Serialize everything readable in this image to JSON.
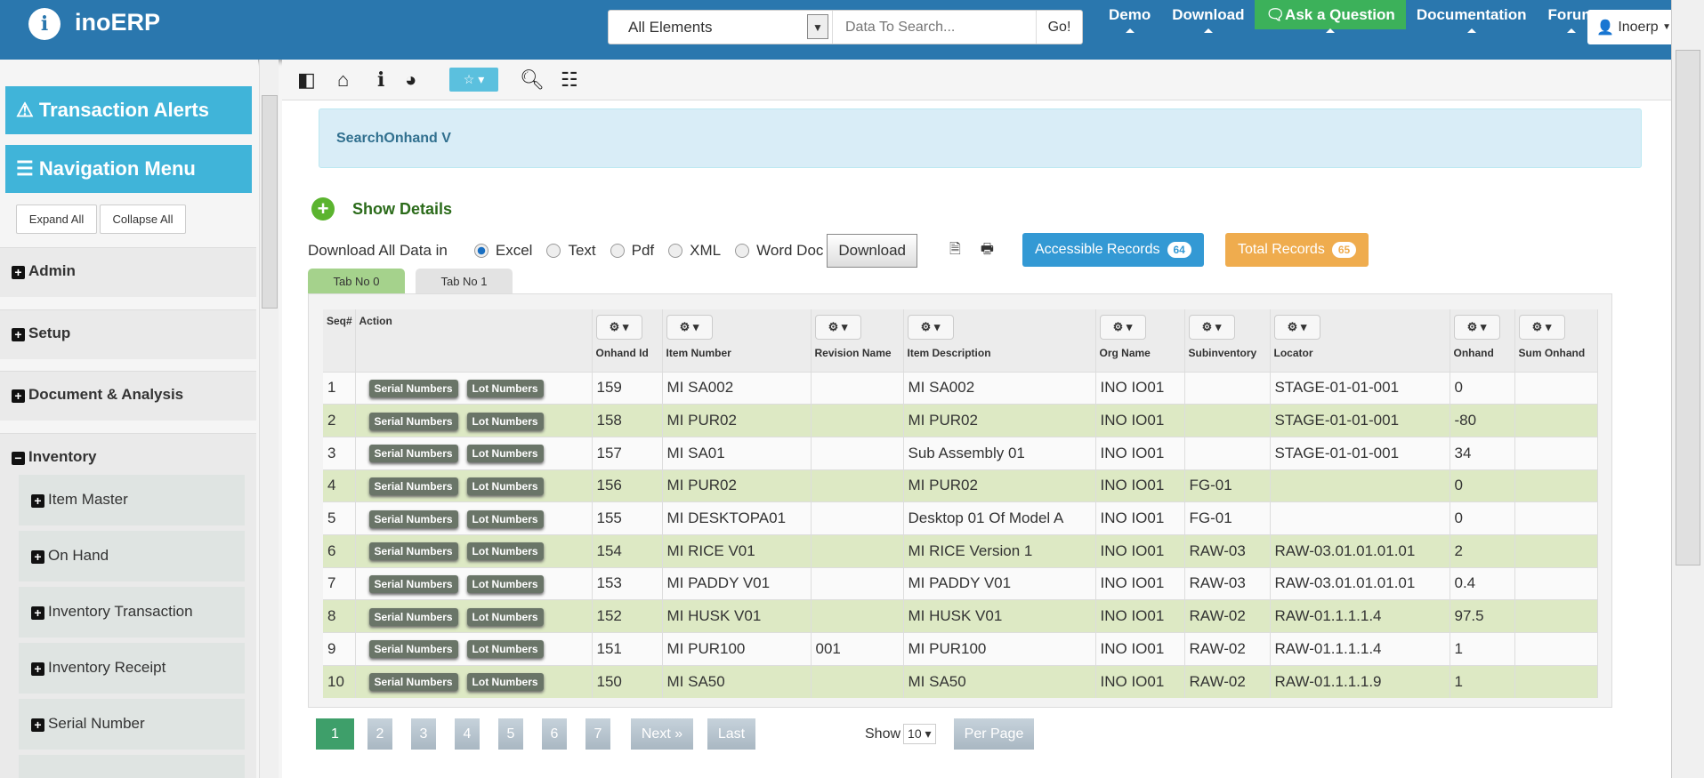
{
  "header": {
    "brand": "inoERP",
    "logo_letter": "i",
    "search_select": "All Elements",
    "search_placeholder": "Data To Search...",
    "go": "Go!",
    "nav": [
      "Demo",
      "Download",
      "Ask a Question",
      "Documentation",
      "Forum"
    ],
    "user": "Inoerp"
  },
  "sidebar": {
    "alerts": "Transaction Alerts",
    "menu": "Navigation Menu",
    "expand": "Expand All",
    "collapse": "Collapse All",
    "sections": [
      "Admin",
      "Setup",
      "Document & Analysis",
      "Inventory"
    ],
    "inventory_items": [
      "Item Master",
      "On Hand",
      "Inventory Transaction",
      "Inventory Receipt",
      "Serial Number"
    ]
  },
  "page": {
    "title": "SearchOnhand V",
    "show_details": "Show Details",
    "download_label": "Download All Data in",
    "formats": [
      "Excel",
      "Text",
      "Pdf",
      "XML",
      "Word Doc"
    ],
    "selected_format": "Excel",
    "download_btn": "Download",
    "accessible_label": "Accessible Records",
    "accessible_count": "64",
    "total_label": "Total Records",
    "total_count": "65",
    "tabs": [
      "Tab No 0",
      "Tab No 1"
    ],
    "active_tab": "Tab No 0"
  },
  "colors": {
    "header": "#2a77ae",
    "ask": "#3cb15a",
    "sidebar_btn": "#40b4d9",
    "accessible": "#3399d4",
    "total": "#efac4e",
    "row_alt": "#dde9c4"
  },
  "table": {
    "columns": [
      "Seq#",
      "Action",
      "Onhand Id",
      "Item Number",
      "Revision Name",
      "Item Description",
      "Org Name",
      "Subinventory",
      "Locator",
      "Onhand",
      "Sum Onhand"
    ],
    "action_buttons": [
      "Serial Numbers",
      "Lot Numbers"
    ],
    "rows": [
      [
        "1",
        "159",
        "MI SA002",
        "",
        "MI SA002",
        "INO IO01",
        "",
        "STAGE-01-01-001",
        "0",
        ""
      ],
      [
        "2",
        "158",
        "MI PUR02",
        "",
        "MI PUR02",
        "INO IO01",
        "",
        "STAGE-01-01-001",
        "-80",
        ""
      ],
      [
        "3",
        "157",
        "MI SA01",
        "",
        "Sub Assembly 01",
        "INO IO01",
        "",
        "STAGE-01-01-001",
        "34",
        ""
      ],
      [
        "4",
        "156",
        "MI PUR02",
        "",
        "MI PUR02",
        "INO IO01",
        "FG-01",
        "",
        "0",
        ""
      ],
      [
        "5",
        "155",
        "MI DESKTOPA01",
        "",
        "Desktop 01 Of Model A",
        "INO IO01",
        "FG-01",
        "",
        "0",
        ""
      ],
      [
        "6",
        "154",
        "MI RICE V01",
        "",
        "MI RICE Version 1",
        "INO IO01",
        "RAW-03",
        "RAW-03.01.01.01.01",
        "2",
        ""
      ],
      [
        "7",
        "153",
        "MI PADDY V01",
        "",
        "MI PADDY V01",
        "INO IO01",
        "RAW-03",
        "RAW-03.01.01.01.01",
        "0.4",
        ""
      ],
      [
        "8",
        "152",
        "MI HUSK V01",
        "",
        "MI HUSK V01",
        "INO IO01",
        "RAW-02",
        "RAW-01.1.1.1.4",
        "97.5",
        ""
      ],
      [
        "9",
        "151",
        "MI PUR100",
        "001",
        "MI PUR100",
        "INO IO01",
        "RAW-02",
        "RAW-01.1.1.1.4",
        "1",
        ""
      ],
      [
        "10",
        "150",
        "MI SA50",
        "",
        "MI SA50",
        "INO IO01",
        "RAW-02",
        "RAW-01.1.1.1.9",
        "1",
        ""
      ]
    ]
  },
  "pagination": {
    "pages": [
      "1",
      "2",
      "3",
      "4",
      "5",
      "6",
      "7"
    ],
    "current": "1",
    "next": "Next »",
    "last": "Last",
    "show": "Show",
    "per_page_value": "10",
    "per_page": "Per Page"
  }
}
